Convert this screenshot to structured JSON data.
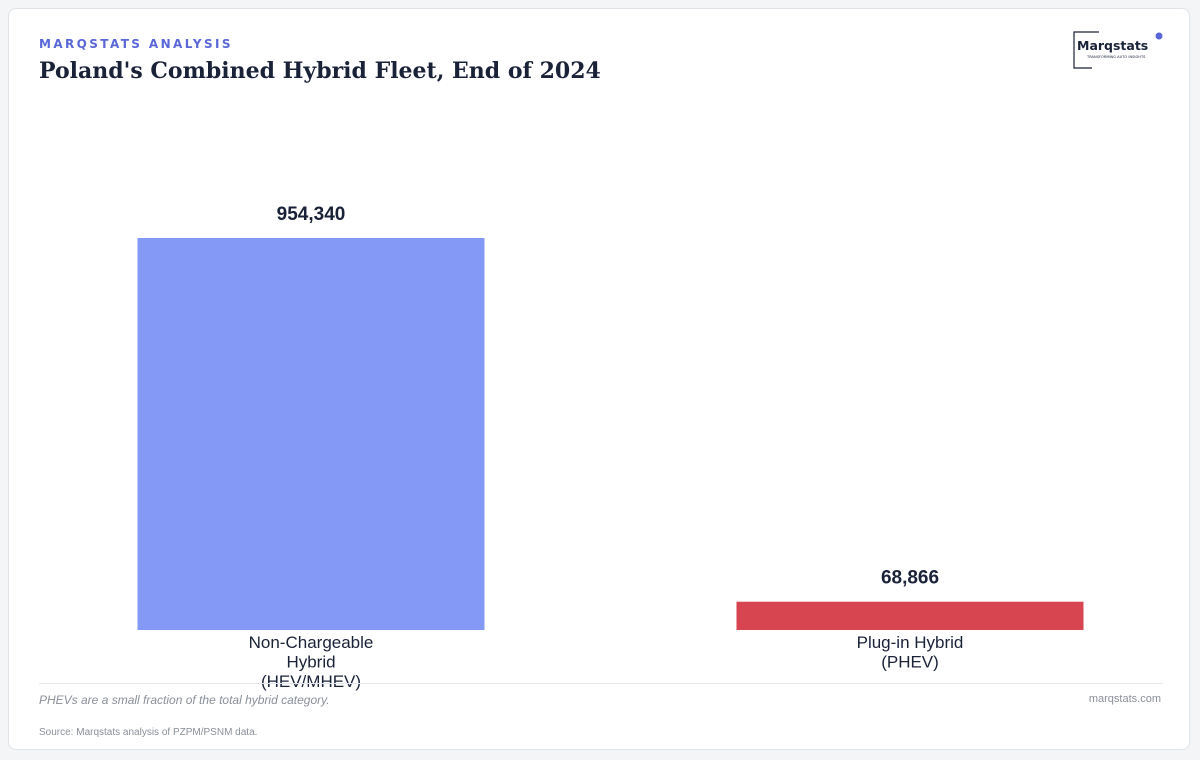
{
  "header": {
    "eyebrow": "MARQSTATS ANALYSIS",
    "title": "Poland's Combined Hybrid Fleet, End of 2024"
  },
  "logo": {
    "name": "Marqstats",
    "tagline": "TRANSFORMING AUTO INSIGHTS"
  },
  "chart_data": {
    "type": "bar",
    "title": "Poland's Combined Hybrid Fleet, End of 2024",
    "xlabel": "",
    "ylabel": "",
    "categories": [
      [
        "Non-Chargeable",
        "Hybrid",
        "(HEV/MHEV)"
      ],
      [
        "Plug-in Hybrid",
        "(PHEV)"
      ]
    ],
    "values": [
      954340,
      68866
    ],
    "value_labels": [
      "954,340",
      "68,866"
    ],
    "colors": [
      "#8499f5",
      "#d64550"
    ],
    "ylim": [
      0,
      954340
    ],
    "grid": false,
    "legend": "none"
  },
  "footer": {
    "note": "PHEVs are a small fraction of the total hybrid category.",
    "website": "marqstats.com",
    "source": "Source: Marqstats analysis of PZPM/PSNM data."
  }
}
